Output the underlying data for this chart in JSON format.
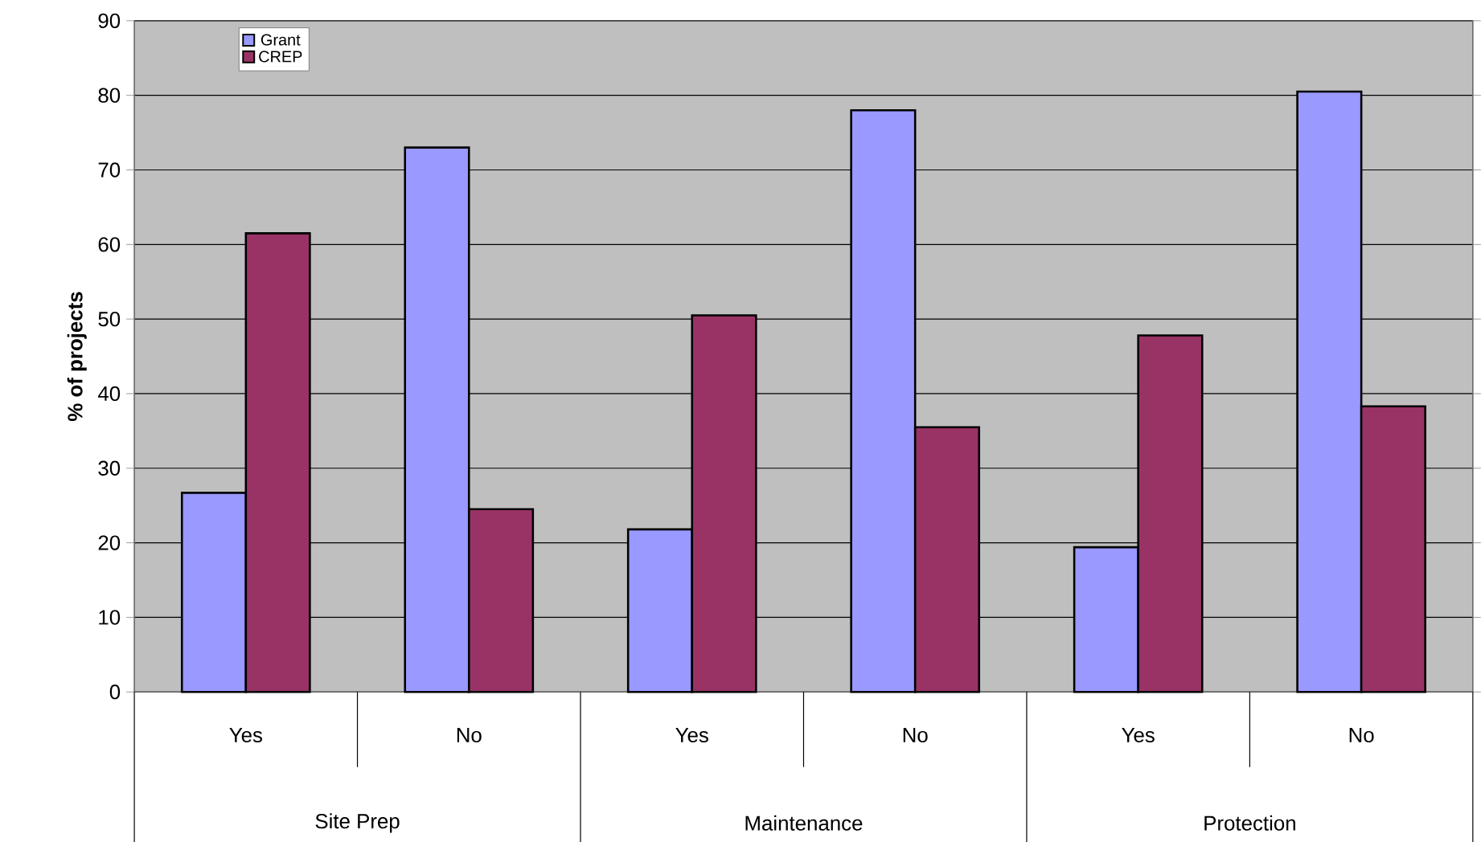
{
  "chart_data": {
    "type": "bar",
    "ylabel": "% of projects",
    "categories": [
      "Yes",
      "No",
      "Yes",
      "No",
      "Yes",
      "No"
    ],
    "series": [
      {
        "name": "Grant",
        "color": "#9999ff",
        "values": [
          26.7,
          73,
          21.8,
          78,
          19.4,
          80.5
        ]
      },
      {
        "name": "CREP",
        "color": "#993366",
        "values": [
          61.5,
          24.5,
          50.5,
          35.5,
          47.8,
          38.3
        ]
      }
    ],
    "annotations": [
      "Site Prep",
      "Maintenance",
      "Protection"
    ],
    "ylim": [
      0,
      90
    ],
    "yticks": [
      0,
      10,
      20,
      30,
      40,
      50,
      60,
      70,
      80,
      90
    ],
    "grid": "y",
    "legend": "top left"
  }
}
